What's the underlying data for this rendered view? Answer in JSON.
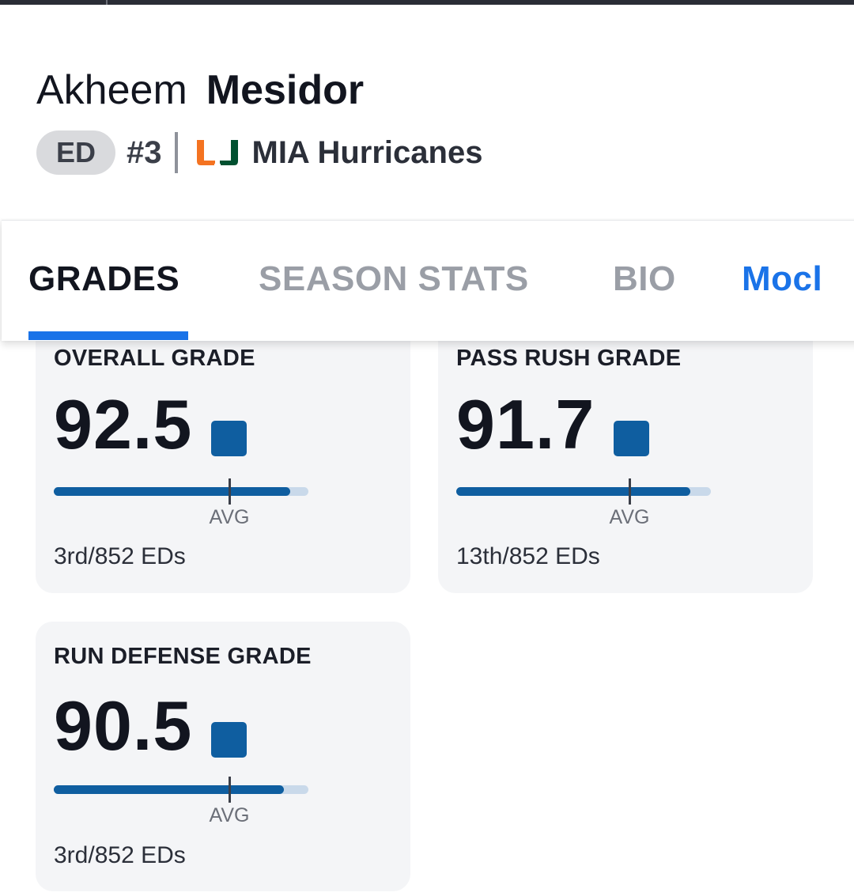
{
  "player": {
    "first_name": "Akheem",
    "last_name": "Mesidor",
    "position": "ED",
    "jersey": "#3",
    "team_name": "MIA Hurricanes",
    "team_logo_icon": "miami-u-logo-icon"
  },
  "tabs": [
    {
      "label": "GRADES",
      "active": true
    },
    {
      "label": "SEASON STATS",
      "active": false
    },
    {
      "label": "BIO",
      "active": false
    },
    {
      "label": "Mocl",
      "active": false
    }
  ],
  "grades": [
    {
      "title": "OVERALL GRADE",
      "value": "92.5",
      "bar_fraction": 0.93,
      "avg_fraction": 0.69,
      "avg_label": "AVG",
      "rank": "3rd/852 EDs"
    },
    {
      "title": "PASS RUSH GRADE",
      "value": "91.7",
      "bar_fraction": 0.92,
      "avg_fraction": 0.68,
      "avg_label": "AVG",
      "rank": "13th/852 EDs"
    },
    {
      "title": "RUN DEFENSE GRADE",
      "value": "90.5",
      "bar_fraction": 0.905,
      "avg_fraction": 0.69,
      "avg_label": "AVG",
      "rank": "3rd/852 EDs"
    }
  ],
  "colors": {
    "accent": "#1a73e8",
    "grade_fill": "#0f5ea0",
    "grade_track": "#c9d9ea",
    "logo_orange": "#f47321",
    "logo_green": "#005030"
  }
}
